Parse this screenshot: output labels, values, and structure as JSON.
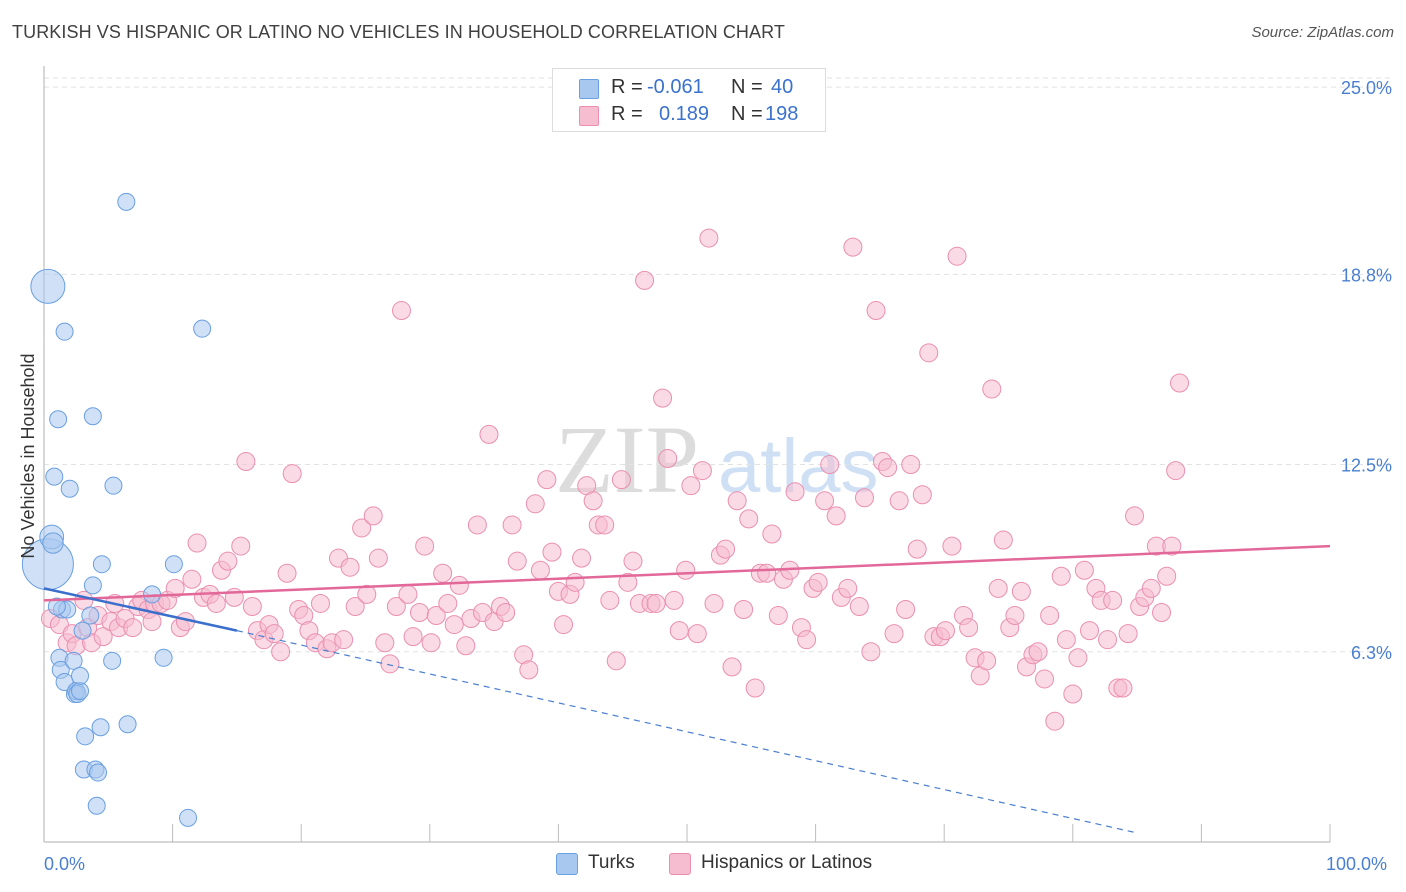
{
  "title": "TURKISH VS HISPANIC OR LATINO NO VEHICLES IN HOUSEHOLD CORRELATION CHART",
  "source": "Source: ZipAtlas.com",
  "watermark": {
    "part1": "ZIP",
    "part2": "atlas"
  },
  "legend": {
    "rows": [
      {
        "r_label": "R =",
        "r_value": "-0.061",
        "n_label": "N =",
        "n_value": "40",
        "color": "#a9c8f0",
        "border": "#6a9fe0"
      },
      {
        "r_label": "R =",
        "r_value": "0.189",
        "n_label": "N =",
        "n_value": "198",
        "color": "#f6bcd0",
        "border": "#ea8fb0"
      }
    ]
  },
  "bottom_legend": [
    {
      "label": "Turks",
      "color": "#a9c8f0",
      "border": "#6a9fe0"
    },
    {
      "label": "Hispanics or Latinos",
      "color": "#f6bcd0",
      "border": "#ea8fb0"
    }
  ],
  "chart_data": {
    "type": "scatter",
    "title": "TURKISH VS HISPANIC OR LATINO NO VEHICLES IN HOUSEHOLD CORRELATION CHART",
    "xlabel": "",
    "ylabel": "No Vehicles in Household",
    "xlim": [
      0,
      100
    ],
    "ylim": [
      0,
      25.5
    ],
    "x_ticks": [
      "0.0%",
      "100.0%"
    ],
    "y_ticks": [
      {
        "value": 6.3,
        "label": "6.3%"
      },
      {
        "value": 12.5,
        "label": "12.5%"
      },
      {
        "value": 18.8,
        "label": "18.8%"
      },
      {
        "value": 25.0,
        "label": "25.0%"
      }
    ],
    "grid": true,
    "legend_position": "top-center",
    "series": [
      {
        "name": "Turks",
        "color": "#a9c8f0",
        "stroke": "#6a9fe0",
        "trend": {
          "x": [
            0,
            15
          ],
          "y": [
            8.4,
            7.0
          ],
          "extended_to": [
            85,
            0.3
          ]
        },
        "points": [
          [
            0.3,
            18.4,
            2
          ],
          [
            0.3,
            9.2,
            3
          ],
          [
            0.6,
            10.1,
            1.4
          ],
          [
            0.7,
            9.9,
            1.2
          ],
          [
            0.8,
            12.1,
            1
          ],
          [
            1.1,
            14.0,
            1
          ],
          [
            1.2,
            6.1,
            1
          ],
          [
            1.3,
            5.7,
            1
          ],
          [
            1.4,
            7.7,
            1
          ],
          [
            1.6,
            5.3,
            1
          ],
          [
            1.6,
            16.9,
            1
          ],
          [
            1.8,
            7.7,
            1
          ],
          [
            2.0,
            11.7,
            1
          ],
          [
            2.3,
            6.0,
            1
          ],
          [
            2.4,
            4.9,
            1
          ],
          [
            2.5,
            5.0,
            1
          ],
          [
            2.6,
            4.9,
            1
          ],
          [
            2.8,
            5.0,
            1
          ],
          [
            2.8,
            5.5,
            1
          ],
          [
            3.0,
            7.0,
            1
          ],
          [
            3.1,
            2.4,
            1
          ],
          [
            3.2,
            3.5,
            1
          ],
          [
            3.6,
            7.5,
            1
          ],
          [
            3.8,
            8.5,
            1
          ],
          [
            3.8,
            14.1,
            1
          ],
          [
            4.0,
            2.4,
            1
          ],
          [
            4.1,
            1.2,
            1
          ],
          [
            4.2,
            2.3,
            1
          ],
          [
            4.4,
            3.8,
            1
          ],
          [
            4.5,
            9.2,
            1
          ],
          [
            5.3,
            6.0,
            1
          ],
          [
            5.4,
            11.8,
            1
          ],
          [
            6.4,
            21.2,
            1
          ],
          [
            6.5,
            3.9,
            1
          ],
          [
            8.4,
            8.2,
            1
          ],
          [
            9.3,
            6.1,
            1
          ],
          [
            10.1,
            9.2,
            1
          ],
          [
            11.2,
            0.8,
            1
          ],
          [
            12.3,
            17.0,
            1
          ],
          [
            1.0,
            7.8,
            1
          ]
        ]
      },
      {
        "name": "Hispanics or Latinos",
        "color": "#f6bcd0",
        "stroke": "#ea8fb0",
        "trend": {
          "x": [
            0,
            100
          ],
          "y": [
            8.0,
            9.8
          ]
        },
        "points": [
          [
            0.5,
            7.4
          ],
          [
            1.2,
            7.2
          ],
          [
            1.8,
            6.6
          ],
          [
            2.2,
            6.9
          ],
          [
            2.5,
            6.5
          ],
          [
            3.1,
            8.0
          ],
          [
            3.4,
            7.1
          ],
          [
            3.7,
            6.6
          ],
          [
            4.2,
            7.5
          ],
          [
            4.6,
            6.8
          ],
          [
            5.2,
            7.3
          ],
          [
            5.5,
            7.9
          ],
          [
            5.8,
            7.1
          ],
          [
            6.3,
            7.4
          ],
          [
            6.9,
            7.1
          ],
          [
            7.3,
            7.8
          ],
          [
            7.6,
            8.0
          ],
          [
            8.1,
            7.7
          ],
          [
            8.4,
            7.3
          ],
          [
            8.6,
            7.9
          ],
          [
            9.1,
            7.9
          ],
          [
            9.6,
            8.0
          ],
          [
            10.2,
            8.4
          ],
          [
            10.6,
            7.1
          ],
          [
            11.0,
            7.3
          ],
          [
            11.5,
            8.7
          ],
          [
            11.9,
            9.9
          ],
          [
            12.4,
            8.1
          ],
          [
            12.9,
            8.2
          ],
          [
            13.4,
            7.9
          ],
          [
            13.8,
            9.0
          ],
          [
            14.3,
            9.3
          ],
          [
            14.8,
            8.1
          ],
          [
            15.3,
            9.8
          ],
          [
            15.7,
            12.6
          ],
          [
            16.2,
            7.8
          ],
          [
            16.6,
            7.0
          ],
          [
            17.1,
            6.7
          ],
          [
            17.5,
            7.2
          ],
          [
            17.9,
            6.9
          ],
          [
            18.4,
            6.3
          ],
          [
            18.9,
            8.9
          ],
          [
            19.3,
            12.2
          ],
          [
            19.8,
            7.7
          ],
          [
            20.2,
            7.5
          ],
          [
            20.6,
            7.0
          ],
          [
            21.1,
            6.6
          ],
          [
            21.5,
            7.9
          ],
          [
            22.0,
            6.4
          ],
          [
            22.4,
            6.6
          ],
          [
            22.9,
            9.4
          ],
          [
            23.3,
            6.7
          ],
          [
            23.8,
            9.1
          ],
          [
            24.2,
            7.8
          ],
          [
            24.7,
            10.4
          ],
          [
            25.1,
            8.2
          ],
          [
            25.6,
            10.8
          ],
          [
            26.0,
            9.4
          ],
          [
            26.5,
            6.6
          ],
          [
            26.9,
            5.9
          ],
          [
            27.4,
            7.8
          ],
          [
            27.8,
            17.6
          ],
          [
            28.3,
            8.2
          ],
          [
            28.7,
            6.8
          ],
          [
            29.2,
            7.6
          ],
          [
            29.6,
            9.8
          ],
          [
            30.1,
            6.6
          ],
          [
            30.5,
            7.5
          ],
          [
            31.0,
            8.9
          ],
          [
            31.4,
            7.9
          ],
          [
            31.9,
            7.2
          ],
          [
            32.3,
            8.5
          ],
          [
            32.8,
            6.5
          ],
          [
            33.2,
            7.4
          ],
          [
            33.7,
            10.5
          ],
          [
            34.1,
            7.6
          ],
          [
            34.6,
            13.5
          ],
          [
            35.0,
            7.3
          ],
          [
            35.5,
            7.8
          ],
          [
            35.9,
            7.6
          ],
          [
            36.4,
            10.5
          ],
          [
            36.8,
            9.3
          ],
          [
            37.3,
            6.2
          ],
          [
            37.7,
            5.7
          ],
          [
            38.2,
            11.2
          ],
          [
            38.6,
            9.0
          ],
          [
            39.1,
            12.0
          ],
          [
            39.5,
            9.6
          ],
          [
            40.0,
            8.3
          ],
          [
            40.4,
            7.2
          ],
          [
            40.9,
            8.2
          ],
          [
            41.3,
            8.6
          ],
          [
            41.8,
            9.4
          ],
          [
            42.2,
            11.8
          ],
          [
            42.7,
            11.3
          ],
          [
            43.1,
            10.5
          ],
          [
            43.6,
            10.5
          ],
          [
            44.0,
            8.0
          ],
          [
            44.5,
            6.0
          ],
          [
            44.9,
            12.0
          ],
          [
            45.4,
            8.6
          ],
          [
            45.8,
            9.3
          ],
          [
            46.3,
            7.9
          ],
          [
            46.7,
            18.6
          ],
          [
            47.2,
            7.9
          ],
          [
            47.6,
            7.9
          ],
          [
            48.1,
            14.7
          ],
          [
            48.5,
            12.7
          ],
          [
            49.0,
            8.0
          ],
          [
            49.4,
            7.0
          ],
          [
            49.9,
            9.0
          ],
          [
            50.3,
            11.8
          ],
          [
            50.8,
            6.9
          ],
          [
            51.2,
            12.3
          ],
          [
            51.7,
            20.0
          ],
          [
            52.1,
            7.9
          ],
          [
            52.6,
            9.5
          ],
          [
            53.0,
            9.7
          ],
          [
            53.5,
            5.8
          ],
          [
            53.9,
            11.3
          ],
          [
            54.4,
            7.7
          ],
          [
            54.8,
            10.7
          ],
          [
            55.3,
            5.1
          ],
          [
            55.7,
            8.9
          ],
          [
            56.2,
            8.9
          ],
          [
            56.6,
            10.2
          ],
          [
            57.1,
            7.5
          ],
          [
            57.5,
            8.7
          ],
          [
            58.0,
            9.0
          ],
          [
            58.4,
            11.6
          ],
          [
            58.9,
            7.1
          ],
          [
            59.3,
            6.7
          ],
          [
            59.8,
            8.4
          ],
          [
            60.2,
            8.6
          ],
          [
            60.7,
            11.3
          ],
          [
            61.1,
            12.5
          ],
          [
            61.6,
            10.8
          ],
          [
            62.0,
            8.1
          ],
          [
            62.5,
            8.4
          ],
          [
            62.9,
            19.7
          ],
          [
            63.4,
            7.8
          ],
          [
            63.8,
            11.4
          ],
          [
            64.3,
            6.3
          ],
          [
            64.7,
            17.6
          ],
          [
            65.2,
            12.6
          ],
          [
            65.6,
            12.4
          ],
          [
            66.1,
            6.9
          ],
          [
            66.5,
            11.3
          ],
          [
            67.0,
            7.7
          ],
          [
            67.4,
            12.5
          ],
          [
            67.9,
            9.7
          ],
          [
            68.3,
            11.5
          ],
          [
            68.8,
            16.2
          ],
          [
            69.2,
            6.8
          ],
          [
            69.7,
            6.8
          ],
          [
            70.1,
            7.0
          ],
          [
            70.6,
            9.8
          ],
          [
            71.0,
            19.4
          ],
          [
            71.5,
            7.5
          ],
          [
            71.9,
            7.1
          ],
          [
            72.4,
            6.1
          ],
          [
            72.8,
            5.5
          ],
          [
            73.3,
            6.0
          ],
          [
            73.7,
            15.0
          ],
          [
            74.2,
            8.4
          ],
          [
            74.6,
            10.0
          ],
          [
            75.1,
            7.1
          ],
          [
            75.5,
            7.5
          ],
          [
            76.0,
            8.3
          ],
          [
            76.4,
            5.8
          ],
          [
            76.9,
            6.2
          ],
          [
            77.3,
            6.3
          ],
          [
            77.8,
            5.4
          ],
          [
            78.2,
            7.5
          ],
          [
            78.6,
            4.0
          ],
          [
            79.1,
            8.8
          ],
          [
            79.5,
            6.7
          ],
          [
            80.0,
            4.9
          ],
          [
            80.4,
            6.1
          ],
          [
            80.9,
            9.0
          ],
          [
            81.3,
            7.0
          ],
          [
            81.8,
            8.4
          ],
          [
            82.2,
            8.0
          ],
          [
            82.7,
            6.7
          ],
          [
            83.1,
            8.0
          ],
          [
            83.5,
            5.1
          ],
          [
            83.9,
            5.1
          ],
          [
            84.3,
            6.9
          ],
          [
            84.8,
            10.8
          ],
          [
            85.2,
            7.8
          ],
          [
            85.6,
            8.1
          ],
          [
            86.1,
            8.4
          ],
          [
            86.5,
            9.8
          ],
          [
            86.9,
            7.6
          ],
          [
            87.3,
            8.8
          ],
          [
            87.7,
            9.8
          ],
          [
            88.0,
            12.3
          ],
          [
            88.3,
            15.2
          ]
        ]
      }
    ]
  }
}
